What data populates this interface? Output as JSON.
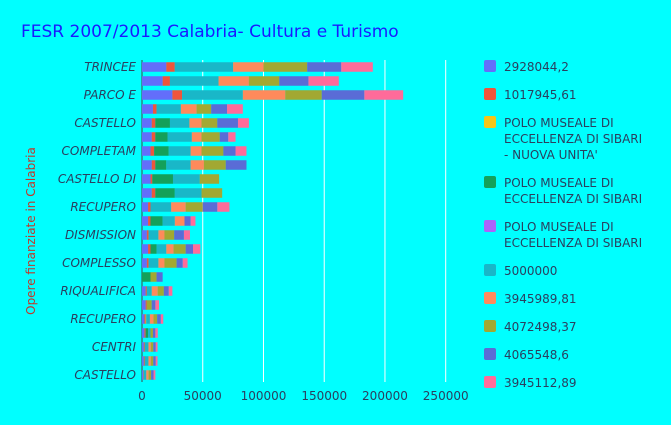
{
  "chart_data": {
    "type": "bar",
    "orientation": "horizontal",
    "stacked": true,
    "title": "FESR 2007/2013 Calabria- Cultura e Turismo",
    "xlabel": "",
    "ylabel": "Opere finanziate in Calabria",
    "xlim": [
      0,
      270000
    ],
    "xticks": [
      0,
      50000,
      100000,
      150000,
      200000,
      250000
    ],
    "xtick_labels": [
      "0",
      "50000",
      "100000",
      "150000",
      "200000",
      "250000"
    ],
    "ytick_labels": [
      "TRINCEE",
      "PARCO E",
      "CASTELLO",
      "COMPLETAM",
      "CASTELLO DI",
      "RECUPERO",
      "DISMISSION",
      "COMPLESSO",
      "RIQUALIFICA",
      "RECUPERO",
      "CENTRI",
      "CASTELLO"
    ],
    "row_count": 23,
    "grid": true,
    "legend_position": "right",
    "series": [
      {
        "name": "2928044,2",
        "color": "#636efa",
        "values": [
          20000,
          17000,
          25000,
          9000,
          8000,
          8000,
          7000,
          8000,
          7000,
          8000,
          5000,
          5000,
          4000,
          5000,
          4000,
          0,
          3000,
          3000,
          2000,
          2000,
          1500,
          1500,
          1000
        ]
      },
      {
        "name": "1017945,61",
        "color": "#ef553b",
        "values": [
          7000,
          6000,
          8000,
          3000,
          3000,
          3000,
          3000,
          3000,
          1500,
          3000,
          2000,
          2000,
          1500,
          2000,
          1500,
          0,
          1000,
          1000,
          1000,
          1000,
          800,
          800,
          500
        ]
      },
      {
        "name": "POLO MUSEALE DI ECCELLENZA DI SIBARI - NUOVA UNITA'",
        "color": "#f5c518",
        "values": [
          0,
          0,
          0,
          0,
          0,
          0,
          0,
          0,
          0,
          0,
          0,
          0,
          0,
          0,
          0,
          0,
          0,
          0,
          500,
          0,
          0,
          0,
          0
        ]
      },
      {
        "name": "POLO MUSEALE DI ECCELLENZA DI SIBARI",
        "color": "#14a05a",
        "values": [
          0,
          0,
          0,
          0,
          12000,
          10000,
          12000,
          9000,
          17000,
          16000,
          0,
          10000,
          0,
          5000,
          0,
          7000,
          0,
          0,
          0,
          2000,
          0,
          0,
          0
        ]
      },
      {
        "name": "POLO MUSEALE DI ECCELLENZA DI SIBARI",
        "color": "#ab63fa",
        "values": [
          0,
          0,
          0,
          0,
          0,
          0,
          0,
          0,
          0,
          0,
          0,
          0,
          0,
          0,
          0,
          0,
          0,
          0,
          0,
          0,
          0,
          0,
          0
        ]
      },
      {
        "name": "5000000",
        "color": "#19b7c8",
        "values": [
          48000,
          40000,
          50000,
          20000,
          16000,
          20000,
          18000,
          20000,
          22000,
          22000,
          17000,
          10000,
          8000,
          8000,
          8000,
          0,
          4000,
          0,
          3000,
          2000,
          3000,
          3000,
          2000
        ]
      },
      {
        "name": "3945989,81",
        "color": "#ff8a5b",
        "values": [
          25000,
          25000,
          35000,
          13000,
          10000,
          8000,
          9000,
          11000,
          0,
          0,
          12000,
          8000,
          5000,
          6000,
          5000,
          0,
          5000,
          0,
          3000,
          0,
          2000,
          2000,
          2000
        ]
      },
      {
        "name": "4072498,37",
        "color": "#a2a832",
        "values": [
          36000,
          25000,
          30000,
          12000,
          13000,
          15000,
          18000,
          18000,
          16000,
          17000,
          14000,
          0,
          8000,
          10000,
          10000,
          5000,
          5000,
          4000,
          3000,
          2000,
          2000,
          2000,
          2000
        ]
      },
      {
        "name": "4065548,6",
        "color": "#5a6cd6",
        "values": [
          28000,
          24000,
          35000,
          13000,
          17000,
          7000,
          10000,
          17000,
          0,
          0,
          12000,
          5000,
          8000,
          6000,
          5000,
          5000,
          4000,
          3000,
          3000,
          2000,
          2000,
          2000,
          2000
        ]
      },
      {
        "name": "3945112,89",
        "color": "#ff6b9a",
        "values": [
          26000,
          25000,
          32000,
          13000,
          9000,
          6000,
          9000,
          0,
          0,
          0,
          10000,
          4000,
          5000,
          6000,
          4000,
          0,
          3000,
          3000,
          2000,
          2000,
          1500,
          1500,
          1500
        ]
      }
    ]
  }
}
